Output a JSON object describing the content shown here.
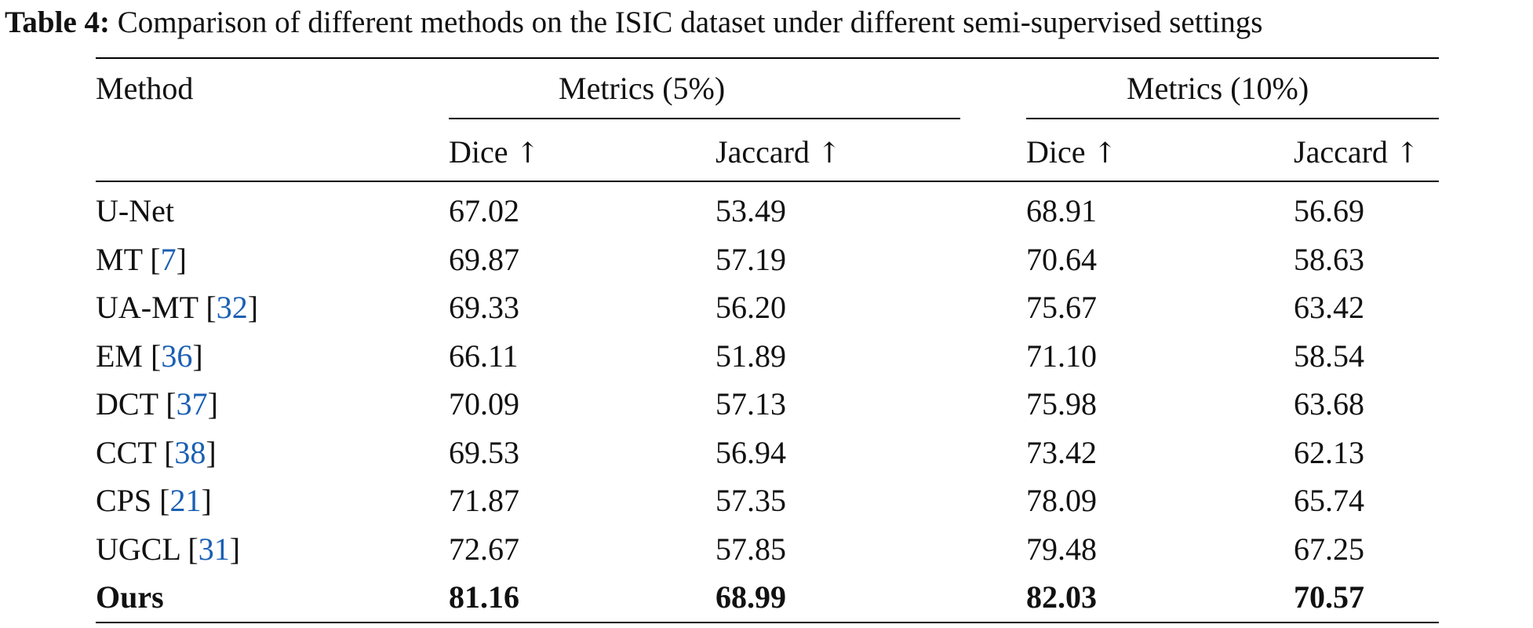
{
  "caption": {
    "label": "Table 4:",
    "text": "Comparison of different methods on the ISIC dataset under different semi-supervised settings"
  },
  "table": {
    "method_header": "Method",
    "group_headers": [
      "Metrics (5%)",
      "Metrics (10%)"
    ],
    "sub_headers": [
      {
        "name": "Dice",
        "arrow": "↑"
      },
      {
        "name": "Jaccard",
        "arrow": "↑"
      },
      {
        "name": "Dice",
        "arrow": "↑"
      },
      {
        "name": "Jaccard",
        "arrow": "↑"
      }
    ],
    "rows": [
      {
        "method": "U-Net",
        "ref": "",
        "values": [
          "67.02",
          "53.49",
          "68.91",
          "56.69"
        ]
      },
      {
        "method": "MT",
        "ref": "7",
        "values": [
          "69.87",
          "57.19",
          "70.64",
          "58.63"
        ]
      },
      {
        "method": "UA-MT",
        "ref": "32",
        "values": [
          "69.33",
          "56.20",
          "75.67",
          "63.42"
        ]
      },
      {
        "method": "EM",
        "ref": "36",
        "values": [
          "66.11",
          "51.89",
          "71.10",
          "58.54"
        ]
      },
      {
        "method": "DCT",
        "ref": "37",
        "values": [
          "70.09",
          "57.13",
          "75.98",
          "63.68"
        ]
      },
      {
        "method": "CCT",
        "ref": "38",
        "values": [
          "69.53",
          "56.94",
          "73.42",
          "62.13"
        ]
      },
      {
        "method": "CPS",
        "ref": "21",
        "values": [
          "71.87",
          "57.35",
          "78.09",
          "65.74"
        ]
      },
      {
        "method": "UGCL",
        "ref": "31",
        "values": [
          "72.67",
          "57.85",
          "79.48",
          "67.25"
        ]
      },
      {
        "method": "Ours",
        "ref": "",
        "bold": true,
        "values": [
          "81.16",
          "68.99",
          "82.03",
          "70.57"
        ]
      }
    ]
  },
  "colors": {
    "citation": "#1a5fb4",
    "text": "#111111"
  }
}
